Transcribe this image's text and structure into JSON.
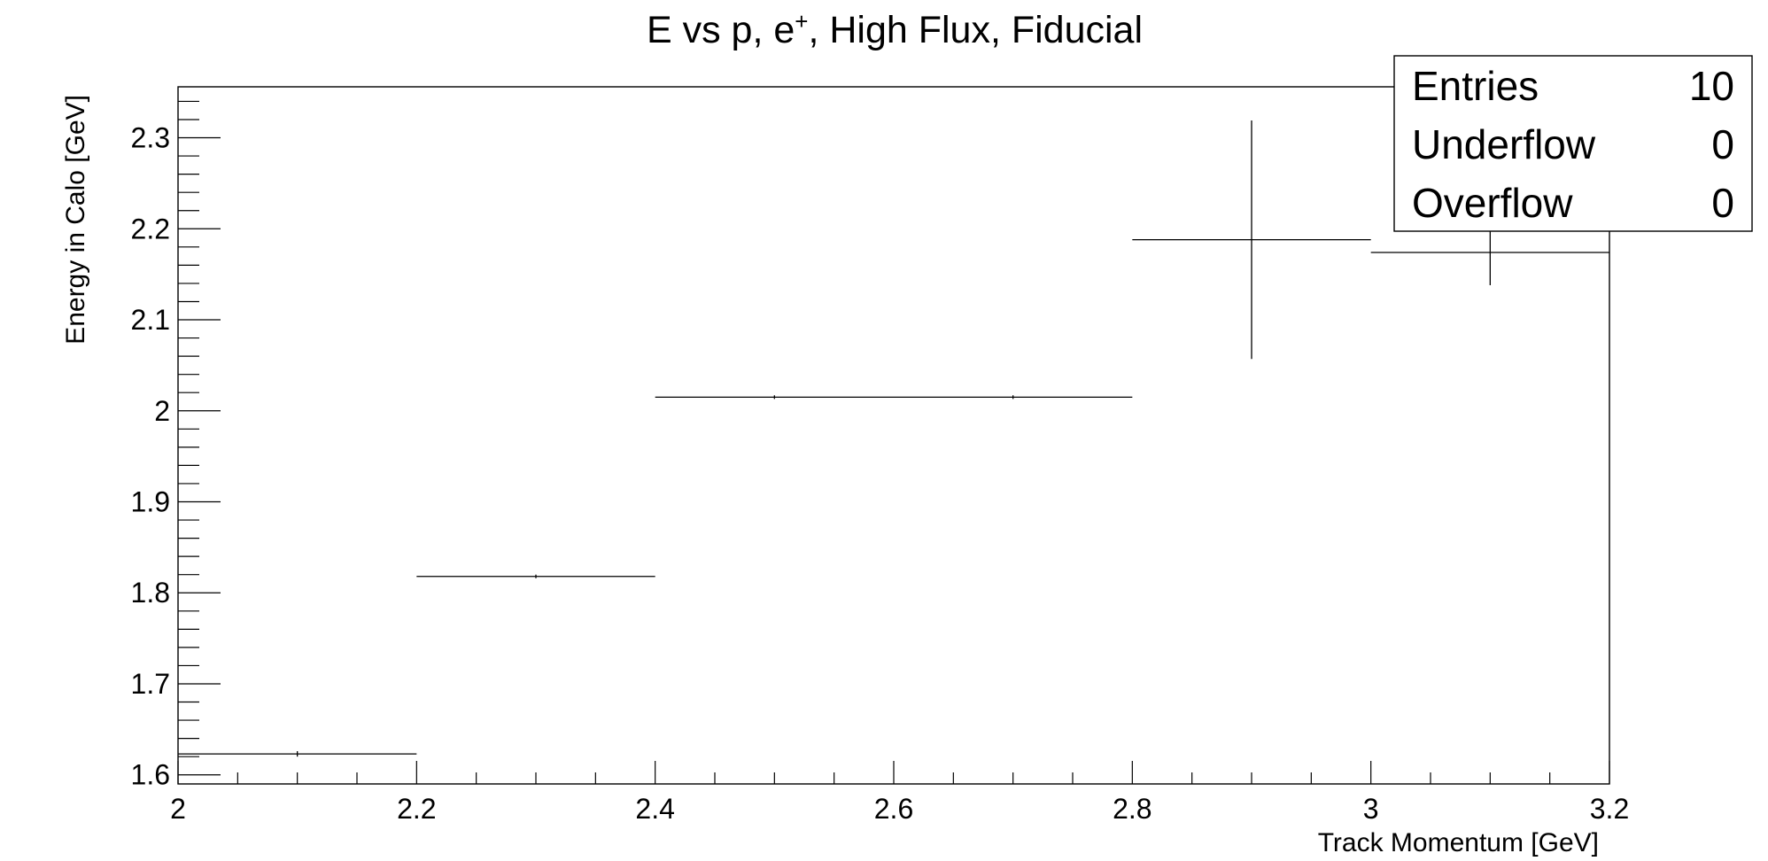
{
  "chart_data": {
    "type": "scatter",
    "title_main": "E vs p, e",
    "title_sup": "+",
    "title_rest": ", High Flux, Fiducial",
    "xlabel": "Track Momentum [GeV]",
    "ylabel": "Energy in Calo [GeV]",
    "xlim": [
      2.0,
      3.2
    ],
    "ylim": [
      1.59,
      2.356
    ],
    "x_ticks": [
      "2",
      "2.2",
      "2.4",
      "2.6",
      "2.8",
      "3",
      "3.2"
    ],
    "y_ticks": [
      "1.6",
      "1.7",
      "1.8",
      "1.9",
      "2",
      "2.1",
      "2.2",
      "2.3"
    ],
    "grid": false,
    "points": [
      {
        "x": 2.1,
        "xerr": 0.1,
        "y": 1.623,
        "yerr": 0.003
      },
      {
        "x": 2.3,
        "xerr": 0.1,
        "y": 1.818,
        "yerr": 0.002
      },
      {
        "x": 2.5,
        "xerr": 0.1,
        "y": 2.015,
        "yerr": 0.002
      },
      {
        "x": 2.7,
        "xerr": 0.1,
        "y": 2.015,
        "yerr": 0.002
      },
      {
        "x": 2.9,
        "xerr": 0.1,
        "y": 2.188,
        "yerr": 0.131
      },
      {
        "x": 3.1,
        "xerr": 0.1,
        "y": 2.174,
        "yerr": 0.036
      }
    ],
    "stats_box": [
      {
        "label": "Entries",
        "value": "10"
      },
      {
        "label": "Underflow",
        "value": "0"
      },
      {
        "label": "Overflow",
        "value": "0"
      }
    ]
  }
}
